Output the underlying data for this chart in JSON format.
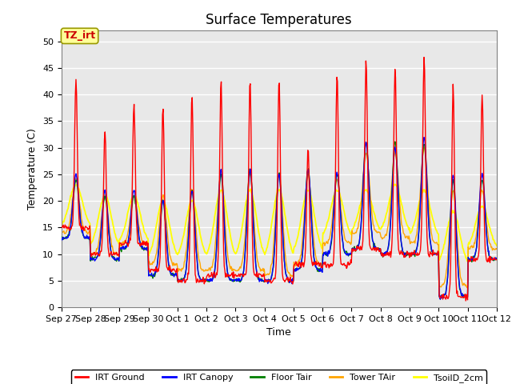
{
  "title": "Surface Temperatures",
  "xlabel": "Time",
  "ylabel": "Temperature (C)",
  "ylim": [
    0,
    52
  ],
  "yticks": [
    0,
    5,
    10,
    15,
    20,
    25,
    30,
    35,
    40,
    45,
    50
  ],
  "annotation_text": "TZ_irt",
  "annotation_color": "#cc0000",
  "annotation_bg": "#ffff99",
  "annotation_border": "#999900",
  "bg_color": "#e8e8e8",
  "legend_entries": [
    "IRT Ground",
    "IRT Canopy",
    "Floor Tair",
    "Tower TAir",
    "TsoilD_2cm"
  ],
  "line_colors": [
    "red",
    "blue",
    "green",
    "orange",
    "yellow"
  ],
  "x_tick_labels": [
    "Sep 27",
    "Sep 28",
    "Sep 29",
    "Sep 30",
    "Oct 1",
    "Oct 2",
    "Oct 3",
    "Oct 4",
    "Oct 5",
    "Oct 6",
    "Oct 7",
    "Oct 8",
    "Oct 9",
    "Oct 10",
    "Oct 11",
    "Oct 12"
  ],
  "title_fontsize": 12,
  "n_days": 15
}
